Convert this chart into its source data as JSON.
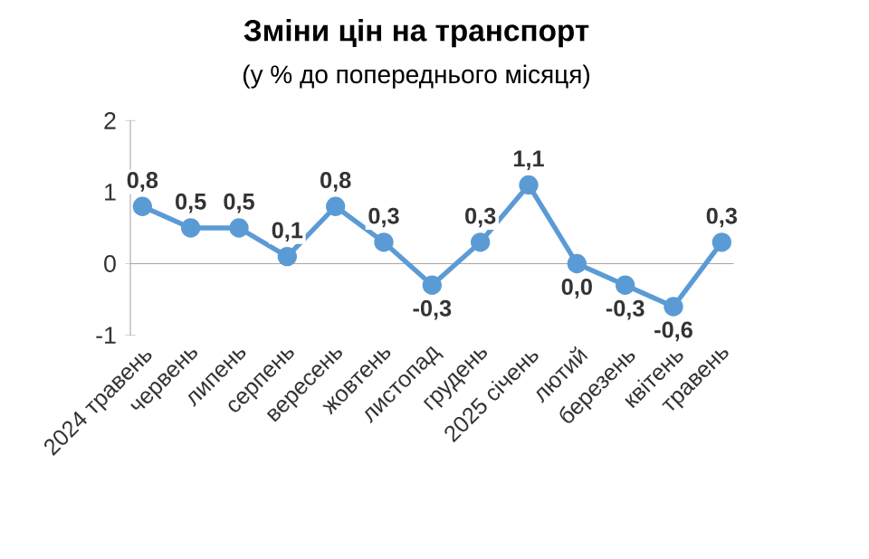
{
  "chart_data": {
    "type": "line",
    "title": "Зміни цін на транспорт",
    "subtitle": "(у % до попереднього місяця)",
    "categories": [
      "2024 травень",
      "червень",
      "липень",
      "серпень",
      "вересень",
      "жовтень",
      "листопад",
      "грудень",
      "2025 січень",
      "лютий",
      "березень",
      "квітень",
      "травень"
    ],
    "values": [
      0.8,
      0.5,
      0.5,
      0.1,
      0.8,
      0.3,
      -0.3,
      0.3,
      1.1,
      0.0,
      -0.3,
      -0.6,
      0.3
    ],
    "value_labels": [
      "0,8",
      "0,5",
      "0,5",
      "0,1",
      "0,8",
      "0,3",
      "-0,3",
      "0,3",
      "1,1",
      "0,0",
      "-0,3",
      "-0,6",
      "0,3"
    ],
    "color": "#5b9bd5",
    "marker": "circle",
    "ylim": [
      -1,
      2
    ],
    "yticks": [
      -1,
      0,
      1,
      2
    ]
  }
}
